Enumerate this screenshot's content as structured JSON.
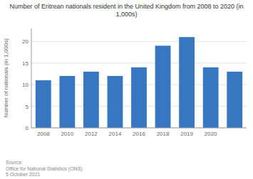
{
  "chart_data": {
    "type": "bar",
    "title": "Number of Eritrean nationals resident in the United Kingdom from 2008 to 2020 (in\n1,000s)",
    "categories": [
      "2008",
      "2010",
      "2012",
      "2014",
      "2016",
      "2018",
      "2019",
      "2020",
      null
    ],
    "values": [
      11,
      12,
      13,
      12,
      14,
      19,
      21,
      14,
      13
    ],
    "color": "#3777c1",
    "ylabel": "Number of nationals (in 1,000s)",
    "ylim": [
      0,
      23
    ],
    "yticks": [
      0,
      5,
      10,
      15,
      20
    ],
    "grid": true,
    "annotations": [
      "Source:\nOffice for National Statistics (ONS)\n5 October 2021"
    ]
  }
}
